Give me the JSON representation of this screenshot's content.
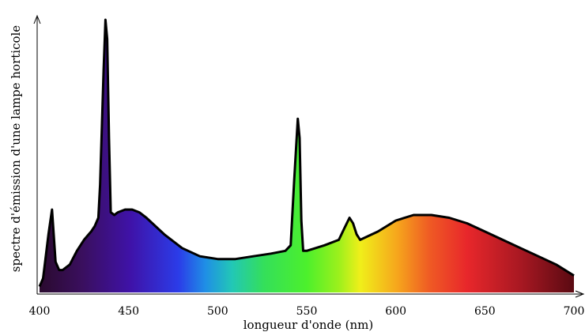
{
  "chart_data": {
    "type": "area",
    "title": "",
    "xlabel": "longueur d'onde (nm)",
    "ylabel": "spectre d'émission d'une lampe horticole",
    "xlim": [
      400,
      700
    ],
    "ylim": [
      0,
      100
    ],
    "x_ticks": [
      400,
      450,
      500,
      550,
      600,
      650,
      700
    ],
    "y_ticks": [],
    "grid": false,
    "legend": "none",
    "fill": "visible-spectrum gradient",
    "series": [
      {
        "x": [
          400,
          402,
          405,
          407,
          409,
          411,
          413,
          417,
          421,
          425,
          429,
          431,
          433,
          434,
          436,
          437,
          438,
          439,
          440,
          442,
          444,
          448,
          452,
          456,
          460,
          470,
          480,
          490,
          500,
          510,
          520,
          530,
          538,
          541,
          543,
          545,
          546,
          547,
          548,
          550,
          555,
          560,
          568,
          571,
          574,
          576,
          578,
          580,
          590,
          600,
          610,
          620,
          630,
          640,
          650,
          660,
          670,
          680,
          690,
          700
        ],
        "y": [
          1,
          4,
          20,
          29,
          10,
          7,
          7,
          9,
          14,
          18,
          21,
          23,
          26,
          38,
          80,
          98,
          91,
          55,
          28,
          27,
          28,
          29,
          29,
          28,
          26,
          20,
          15,
          12,
          11,
          11,
          12,
          13,
          14,
          16,
          40,
          62,
          55,
          25,
          14,
          14,
          15,
          16,
          18,
          22,
          26,
          24,
          20,
          18,
          21,
          25,
          27,
          27,
          26,
          24,
          21,
          18,
          15,
          12,
          9,
          5
        ]
      }
    ]
  }
}
